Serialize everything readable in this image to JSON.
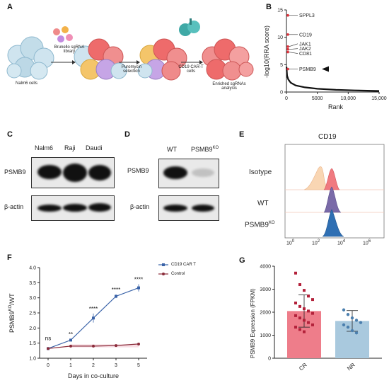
{
  "panels": {
    "A": {
      "letter": "A",
      "steps": [
        "Nalm6 cells",
        "Brunello sgRNA library",
        "Puromycin selection",
        "CD19 CAR-T cells",
        "Enriched sgRNAs analysis"
      ]
    },
    "B": {
      "letter": "B",
      "ylabel": "-log10(RRA score)",
      "xlabel": "Rank",
      "xticks": [
        "0",
        "5000",
        "10,000",
        "15,000"
      ],
      "yticks": [
        "0",
        "5",
        "10",
        "15"
      ],
      "genes": [
        {
          "name": "SPPL3",
          "rank": 1,
          "score": 14.0
        },
        {
          "name": "CD19",
          "rank": 2,
          "score": 10.5
        },
        {
          "name": "JAK1",
          "rank": 3,
          "score": 8.3
        },
        {
          "name": "JAK2",
          "rank": 4,
          "score": 7.8
        },
        {
          "name": "CD81",
          "rank": 5,
          "score": 7.3
        },
        {
          "name": "PSMB9",
          "rank": 6,
          "score": 4.2
        }
      ]
    },
    "C": {
      "letter": "C",
      "lanes": [
        "Nalm6",
        "Raji",
        "Daudi"
      ],
      "rows": [
        "PSMB9",
        "β-actin"
      ]
    },
    "D": {
      "letter": "D",
      "lanes": [
        "WT",
        "PSMB9",
        "KO"
      ],
      "rows": [
        "PSMB9",
        "β-actin"
      ]
    },
    "E": {
      "letter": "E",
      "title": "CD19",
      "rows": [
        "Isotype",
        "WT",
        "PSMB9",
        "KO"
      ],
      "xticks": [
        "10",
        "0",
        "10",
        "2",
        "10",
        "4",
        "10",
        "6"
      ]
    },
    "F": {
      "letter": "F",
      "ylabel_main": "PSMB9",
      "ylabel_sup": "KO",
      "ylabel_tail": "/WT",
      "xlabel": "Days in co-culture",
      "yticks": [
        "1.0",
        "1.5",
        "2.0",
        "2.5",
        "3.0",
        "3.5",
        "4.0"
      ],
      "legend": [
        "CD19 CAR T",
        "Control"
      ],
      "sig": [
        "ns",
        "**",
        "****",
        "****",
        "****"
      ]
    },
    "G": {
      "letter": "G",
      "ylabel": "PSMB9 Expression (FPKM)",
      "yticks": [
        "0",
        "1000",
        "2000",
        "3000",
        "4000"
      ]
    }
  },
  "chart_data": [
    {
      "type": "scatter",
      "panel": "B",
      "xlabel": "Rank",
      "ylabel": "-log10(RRA score)",
      "xlim": [
        0,
        15000
      ],
      "ylim": [
        0,
        15
      ],
      "points": [
        {
          "x": 1,
          "y": 14.0,
          "label": "SPPL3"
        },
        {
          "x": 2,
          "y": 10.5,
          "label": "CD19"
        },
        {
          "x": 3,
          "y": 8.3,
          "label": "JAK1"
        },
        {
          "x": 4,
          "y": 7.8,
          "label": "JAK2"
        },
        {
          "x": 5,
          "y": 7.3,
          "label": "CD81"
        },
        {
          "x": 6,
          "y": 4.2,
          "label": "PSMB9"
        }
      ],
      "curve": [
        [
          10,
          4.6
        ],
        [
          100,
          3.0
        ],
        [
          300,
          2.3
        ],
        [
          700,
          1.7
        ],
        [
          1500,
          1.2
        ],
        [
          3000,
          0.85
        ],
        [
          5000,
          0.6
        ],
        [
          8000,
          0.4
        ],
        [
          11000,
          0.3
        ],
        [
          15000,
          0.2
        ]
      ]
    },
    {
      "type": "line",
      "panel": "F",
      "categories": [
        "0",
        "1",
        "2",
        "3",
        "5"
      ],
      "ylabel": "PSMB9KO/WT",
      "xlabel": "Days in co-culture",
      "ylim": [
        1.0,
        4.0
      ],
      "legend": "top-right",
      "series": [
        {
          "name": "CD19 CAR T",
          "values": [
            1.32,
            1.6,
            2.33,
            3.05,
            3.33
          ],
          "errors": [
            0.02,
            0.03,
            0.15,
            0.06,
            0.12
          ],
          "color": "#3a63a8"
        },
        {
          "name": "Control",
          "values": [
            1.32,
            1.4,
            1.4,
            1.42,
            1.47
          ],
          "errors": [
            0.02,
            0.02,
            0.03,
            0.02,
            0.03
          ],
          "color": "#8a2b3a"
        }
      ]
    },
    {
      "type": "bar",
      "panel": "G",
      "categories": [
        "CR",
        "NR"
      ],
      "values": [
        2050,
        1620
      ],
      "errors": [
        700,
        450
      ],
      "ylabel": "PSMB9 Expression (FPKM)",
      "ylim": [
        0,
        4000
      ],
      "colors": [
        "#ee7d8a",
        "#a9c9de"
      ],
      "points": {
        "CR": [
          3700,
          3200,
          2950,
          2700,
          2550,
          2400,
          2250,
          2150,
          2050,
          1950,
          1850,
          1750,
          1650,
          1550,
          1450,
          1350,
          1250,
          1150
        ],
        "NR": [
          2100,
          1900,
          1750,
          1650,
          1550,
          1450,
          1350,
          1200,
          1100
        ]
      }
    }
  ]
}
